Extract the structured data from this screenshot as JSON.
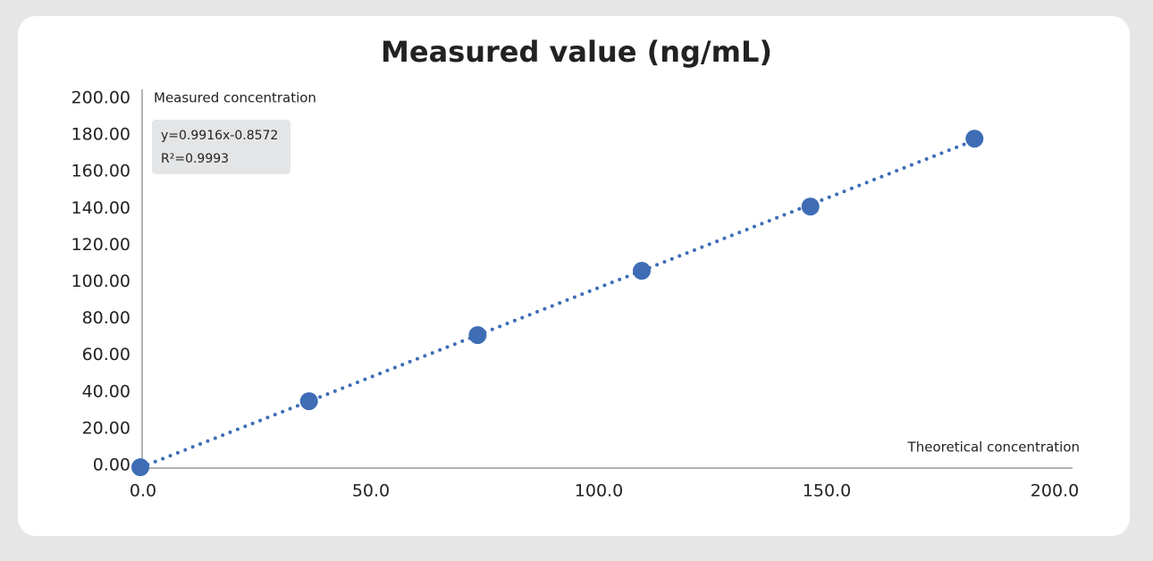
{
  "chart_data": {
    "type": "scatter",
    "title": "Measured value (ng/mL)",
    "x_label": "Theoretical concentration",
    "y_label": "Measured concentration",
    "annotations": [
      "y=0.9916x-0.8572",
      "R²=0.9993"
    ],
    "trendline": true,
    "color": "#3e6db5",
    "x": [
      0,
      37,
      74,
      110,
      147,
      183
    ],
    "values": [
      -1,
      35,
      71,
      106,
      141,
      178
    ],
    "xlim": [
      0,
      200
    ],
    "ylim": [
      0,
      200
    ],
    "xticks": [
      {
        "value": 0,
        "label": "0.0"
      },
      {
        "value": 50,
        "label": "50.0"
      },
      {
        "value": 100,
        "label": "100.0"
      },
      {
        "value": 150,
        "label": "150.0"
      },
      {
        "value": 200,
        "label": "200.0"
      }
    ],
    "yticks": [
      {
        "value": 0,
        "label": "0.00"
      },
      {
        "value": 20,
        "label": "20.00"
      },
      {
        "value": 40,
        "label": "40.00"
      },
      {
        "value": 60,
        "label": "60.00"
      },
      {
        "value": 80,
        "label": "80.00"
      },
      {
        "value": 100,
        "label": "100.00"
      },
      {
        "value": 120,
        "label": "120.00"
      },
      {
        "value": 140,
        "label": "140.00"
      },
      {
        "value": 160,
        "label": "160.00"
      },
      {
        "value": 180,
        "label": "180.00"
      },
      {
        "value": 200,
        "label": "200.00"
      }
    ]
  }
}
